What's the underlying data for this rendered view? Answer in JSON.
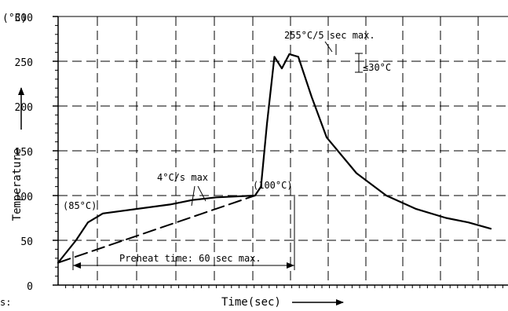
{
  "chart_data": {
    "type": "line",
    "title": "",
    "unit_label": "(°C)",
    "xlabel": "Time(sec)",
    "ylabel": "Temperature",
    "ylim": [
      0,
      300
    ],
    "y_ticks": [
      "0",
      "50",
      "100",
      "150",
      "200",
      "250",
      "300"
    ],
    "grid": true,
    "series": [
      {
        "style": "solid",
        "x": [
          0,
          12,
          20,
          30,
          75,
          90,
          106,
          132,
          136,
          140,
          145,
          150,
          155,
          161,
          170,
          180,
          200,
          220,
          240,
          260,
          275,
          290
        ],
        "y": [
          25,
          50,
          70,
          80,
          90,
          95,
          98,
          100,
          110,
          180,
          255,
          242,
          258,
          255,
          210,
          165,
          125,
          100,
          85,
          75,
          70,
          63
        ]
      },
      {
        "style": "dashed",
        "x": [
          0,
          132
        ],
        "y": [
          25,
          100
        ]
      }
    ],
    "annotations": {
      "pt85": "(85°C)",
      "pt100": "(100°C)",
      "ramp": "4°C/s max",
      "peak": "255°C/5 sec max.",
      "delta": "≤30°C",
      "preheat": "Preheat time: 60 sec max."
    },
    "colors": {
      "line": "#000000",
      "grid": "#000000"
    }
  },
  "footer": {
    "fragment": "s:"
  }
}
